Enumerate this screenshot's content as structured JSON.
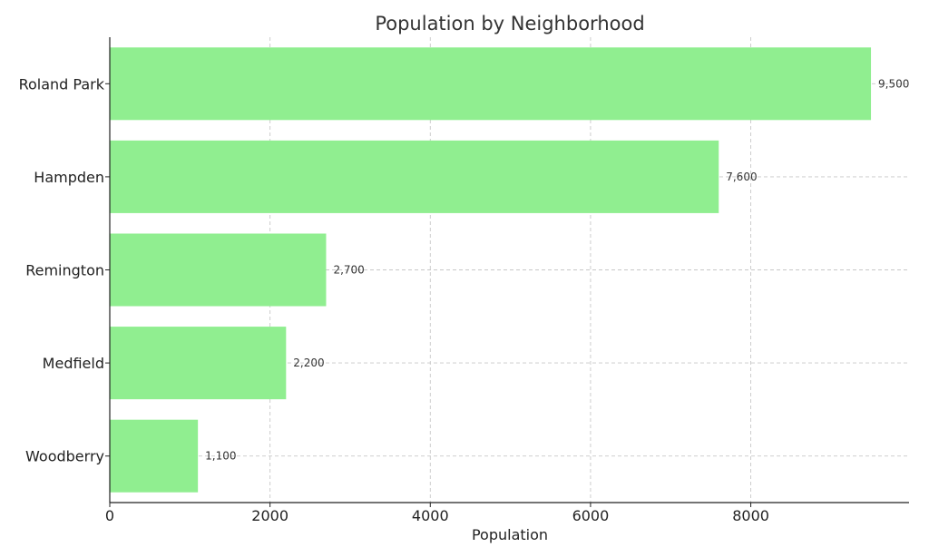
{
  "chart_data": {
    "type": "bar",
    "orientation": "horizontal",
    "title": "Population by Neighborhood",
    "xlabel": "Population",
    "ylabel": "",
    "categories": [
      "Roland Park",
      "Hampden",
      "Remington",
      "Medfield",
      "Woodberry"
    ],
    "values": [
      9500,
      7600,
      2700,
      2200,
      1100
    ],
    "value_labels": [
      "9,500",
      "7,600",
      "2,700",
      "2,200",
      "1,100"
    ],
    "xlim": [
      0,
      9975
    ],
    "xticks": [
      0,
      2000,
      4000,
      6000,
      8000
    ],
    "xtick_labels": [
      "0",
      "2000",
      "4000",
      "6000",
      "8000"
    ],
    "grid": true,
    "bar_color": "#90EE90"
  }
}
